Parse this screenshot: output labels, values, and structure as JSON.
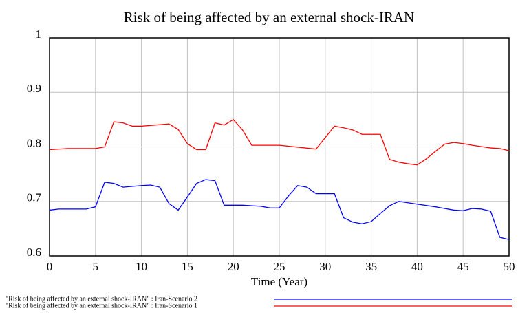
{
  "chart_data": {
    "type": "line",
    "title": "Risk of being affected by an external shock-IRAN",
    "x_label": "Time (Year)",
    "xlim": [
      0,
      50
    ],
    "xticks": [
      0,
      5,
      10,
      15,
      20,
      25,
      30,
      35,
      40,
      45,
      50
    ],
    "ylim": [
      0.6,
      1
    ],
    "yticks": [
      0.6,
      0.7,
      0.8,
      0.9,
      1
    ],
    "grid": true,
    "legend": "bottom",
    "series": [
      {
        "name": "\"Risk of being affected by an external shock-IRAN\" : Iran-Scenario 2",
        "color": "#0000ff",
        "x": [
          0,
          1,
          4,
          5,
          6,
          7,
          8,
          10,
          11,
          12,
          13,
          14,
          15,
          16,
          17,
          18,
          19,
          21,
          23,
          24,
          25,
          26,
          27,
          28,
          29,
          31,
          32,
          33,
          34,
          35,
          36,
          37,
          38,
          40,
          42,
          44,
          45,
          46,
          47,
          48,
          49,
          50
        ],
        "values": [
          0.684,
          0.686,
          0.686,
          0.69,
          0.735,
          0.733,
          0.726,
          0.729,
          0.73,
          0.726,
          0.696,
          0.684,
          0.708,
          0.733,
          0.74,
          0.738,
          0.693,
          0.693,
          0.691,
          0.688,
          0.688,
          0.71,
          0.729,
          0.726,
          0.714,
          0.714,
          0.67,
          0.662,
          0.659,
          0.663,
          0.678,
          0.692,
          0.7,
          0.695,
          0.69,
          0.684,
          0.683,
          0.687,
          0.686,
          0.682,
          0.634,
          0.63
        ]
      },
      {
        "name": "\"Risk of being affected by an external shock-IRAN\" : Iran-Scenario 1",
        "color": "#ff0000",
        "x": [
          0,
          2,
          5,
          6,
          7,
          8,
          9,
          10,
          13,
          14,
          15,
          16,
          17,
          18,
          19,
          20,
          21,
          22,
          25,
          29,
          30,
          31,
          32,
          33,
          34,
          36,
          37,
          38,
          39,
          40,
          41,
          42,
          43,
          44,
          45,
          46,
          48,
          49,
          50
        ],
        "values": [
          0.795,
          0.797,
          0.797,
          0.8,
          0.846,
          0.844,
          0.838,
          0.838,
          0.842,
          0.832,
          0.806,
          0.795,
          0.795,
          0.844,
          0.84,
          0.85,
          0.831,
          0.803,
          0.803,
          0.796,
          0.817,
          0.838,
          0.835,
          0.831,
          0.823,
          0.823,
          0.777,
          0.772,
          0.769,
          0.767,
          0.778,
          0.792,
          0.805,
          0.808,
          0.806,
          0.803,
          0.798,
          0.797,
          0.793
        ]
      }
    ]
  }
}
